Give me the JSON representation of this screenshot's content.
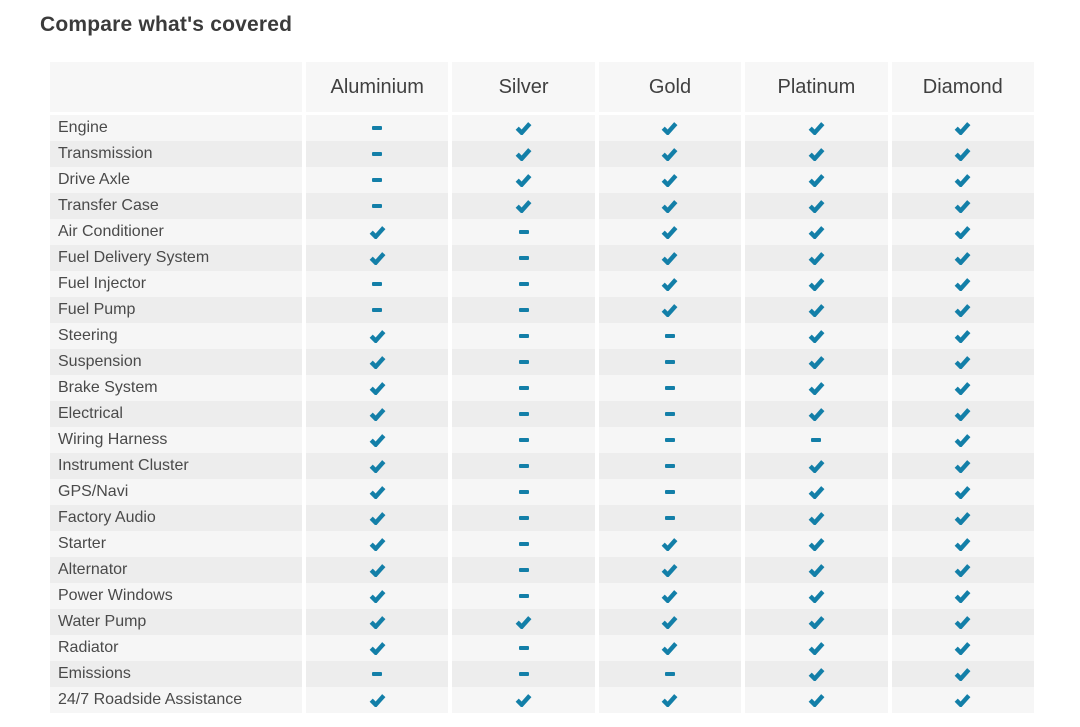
{
  "page": {
    "title": "Compare what's covered"
  },
  "colors": {
    "accent": "#137fa8",
    "header_bg": "#f7f7f7",
    "row_light": "#f6f6f6",
    "row_dark": "#ededed"
  },
  "table": {
    "columns": [
      "Aluminium",
      "Silver",
      "Gold",
      "Platinum",
      "Diamond"
    ],
    "icons": {
      "covered": "check-icon",
      "not_covered": "dash-icon"
    },
    "rows": [
      {
        "label": "Engine",
        "covered": [
          false,
          true,
          true,
          true,
          true
        ]
      },
      {
        "label": "Transmission",
        "covered": [
          false,
          true,
          true,
          true,
          true
        ]
      },
      {
        "label": "Drive Axle",
        "covered": [
          false,
          true,
          true,
          true,
          true
        ]
      },
      {
        "label": "Transfer Case",
        "covered": [
          false,
          true,
          true,
          true,
          true
        ]
      },
      {
        "label": "Air Conditioner",
        "covered": [
          true,
          false,
          true,
          true,
          true
        ]
      },
      {
        "label": "Fuel Delivery System",
        "covered": [
          true,
          false,
          true,
          true,
          true
        ]
      },
      {
        "label": "Fuel Injector",
        "covered": [
          false,
          false,
          true,
          true,
          true
        ]
      },
      {
        "label": "Fuel Pump",
        "covered": [
          false,
          false,
          true,
          true,
          true
        ]
      },
      {
        "label": "Steering",
        "covered": [
          true,
          false,
          false,
          true,
          true
        ]
      },
      {
        "label": "Suspension",
        "covered": [
          true,
          false,
          false,
          true,
          true
        ]
      },
      {
        "label": "Brake System",
        "covered": [
          true,
          false,
          false,
          true,
          true
        ]
      },
      {
        "label": "Electrical",
        "covered": [
          true,
          false,
          false,
          true,
          true
        ]
      },
      {
        "label": "Wiring Harness",
        "covered": [
          true,
          false,
          false,
          false,
          true
        ]
      },
      {
        "label": "Instrument Cluster",
        "covered": [
          true,
          false,
          false,
          true,
          true
        ]
      },
      {
        "label": "GPS/Navi",
        "covered": [
          true,
          false,
          false,
          true,
          true
        ]
      },
      {
        "label": "Factory Audio",
        "covered": [
          true,
          false,
          false,
          true,
          true
        ]
      },
      {
        "label": "Starter",
        "covered": [
          true,
          false,
          true,
          true,
          true
        ]
      },
      {
        "label": "Alternator",
        "covered": [
          true,
          false,
          true,
          true,
          true
        ]
      },
      {
        "label": "Power Windows",
        "covered": [
          true,
          false,
          true,
          true,
          true
        ]
      },
      {
        "label": "Water Pump",
        "covered": [
          true,
          true,
          true,
          true,
          true
        ]
      },
      {
        "label": "Radiator",
        "covered": [
          true,
          false,
          true,
          true,
          true
        ]
      },
      {
        "label": "Emissions",
        "covered": [
          false,
          false,
          false,
          true,
          true
        ]
      },
      {
        "label": "24/7 Roadside Assistance",
        "covered": [
          true,
          true,
          true,
          true,
          true
        ]
      }
    ]
  }
}
